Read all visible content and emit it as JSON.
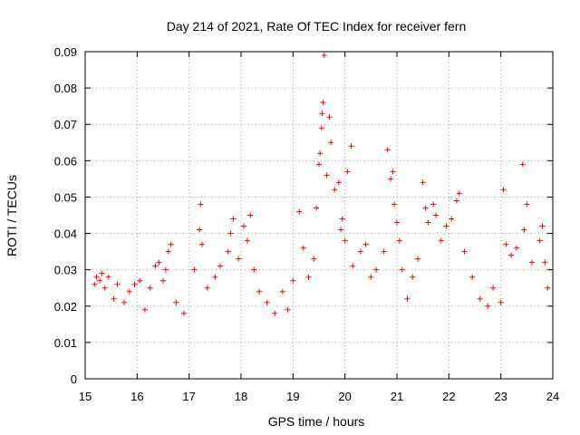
{
  "chart_data": {
    "type": "scatter",
    "title": "Day 214 of 2021, Rate Of TEC Index for receiver fern",
    "xlabel": "GPS time / hours",
    "ylabel": "ROTI / TECUs",
    "xlim": [
      15,
      24
    ],
    "ylim": [
      0,
      0.09
    ],
    "x_ticks": [
      15,
      16,
      17,
      18,
      19,
      20,
      21,
      22,
      23,
      24
    ],
    "x_tick_labels": [
      "15",
      "16",
      "17",
      "18",
      "19",
      "20",
      "21",
      "22",
      "23",
      "24"
    ],
    "y_ticks": [
      0,
      0.01,
      0.02,
      0.03,
      0.04,
      0.05,
      0.06,
      0.07,
      0.08,
      0.09
    ],
    "y_tick_labels": [
      "0",
      "0.01",
      "0.02",
      "0.03",
      "0.04",
      "0.05",
      "0.06",
      "0.07",
      "0.08",
      "0.09"
    ],
    "grid": true,
    "marker": "+",
    "series": [
      {
        "name": "ROTI",
        "color": "#ff0000",
        "points": [
          [
            15.18,
            0.026
          ],
          [
            15.22,
            0.028
          ],
          [
            15.28,
            0.027
          ],
          [
            15.32,
            0.029
          ],
          [
            15.38,
            0.025
          ],
          [
            15.45,
            0.028
          ],
          [
            15.55,
            0.022
          ],
          [
            15.62,
            0.026
          ],
          [
            15.75,
            0.021
          ],
          [
            15.85,
            0.024
          ],
          [
            15.95,
            0.026
          ],
          [
            16.05,
            0.027
          ],
          [
            16.15,
            0.019
          ],
          [
            16.25,
            0.025
          ],
          [
            16.35,
            0.031
          ],
          [
            16.42,
            0.032
          ],
          [
            16.5,
            0.027
          ],
          [
            16.55,
            0.03
          ],
          [
            16.6,
            0.035
          ],
          [
            16.65,
            0.037
          ],
          [
            16.75,
            0.021
          ],
          [
            16.9,
            0.018
          ],
          [
            17.1,
            0.03
          ],
          [
            17.2,
            0.041
          ],
          [
            17.22,
            0.048
          ],
          [
            17.25,
            0.037
          ],
          [
            17.35,
            0.025
          ],
          [
            17.5,
            0.028
          ],
          [
            17.6,
            0.031
          ],
          [
            17.75,
            0.035
          ],
          [
            17.8,
            0.04
          ],
          [
            17.85,
            0.044
          ],
          [
            17.95,
            0.033
          ],
          [
            18.05,
            0.042
          ],
          [
            18.12,
            0.038
          ],
          [
            18.18,
            0.045
          ],
          [
            18.25,
            0.03
          ],
          [
            18.35,
            0.024
          ],
          [
            18.5,
            0.021
          ],
          [
            18.65,
            0.018
          ],
          [
            18.8,
            0.024
          ],
          [
            18.9,
            0.019
          ],
          [
            19.0,
            0.027
          ],
          [
            19.12,
            0.046
          ],
          [
            19.2,
            0.036
          ],
          [
            19.3,
            0.028
          ],
          [
            19.4,
            0.033
          ],
          [
            19.45,
            0.047
          ],
          [
            19.5,
            0.059
          ],
          [
            19.52,
            0.062
          ],
          [
            19.55,
            0.069
          ],
          [
            19.56,
            0.073
          ],
          [
            19.58,
            0.076
          ],
          [
            19.6,
            0.089
          ],
          [
            19.65,
            0.056
          ],
          [
            19.7,
            0.072
          ],
          [
            19.73,
            0.065
          ],
          [
            19.8,
            0.052
          ],
          [
            19.88,
            0.054
          ],
          [
            19.92,
            0.041
          ],
          [
            19.95,
            0.044
          ],
          [
            20.0,
            0.038
          ],
          [
            20.05,
            0.057
          ],
          [
            20.12,
            0.064
          ],
          [
            20.15,
            0.031
          ],
          [
            20.3,
            0.035
          ],
          [
            20.4,
            0.037
          ],
          [
            20.5,
            0.028
          ],
          [
            20.6,
            0.03
          ],
          [
            20.75,
            0.035
          ],
          [
            20.82,
            0.063
          ],
          [
            20.88,
            0.055
          ],
          [
            20.92,
            0.057
          ],
          [
            20.95,
            0.048
          ],
          [
            21.0,
            0.043
          ],
          [
            21.05,
            0.038
          ],
          [
            21.1,
            0.03
          ],
          [
            21.2,
            0.022
          ],
          [
            21.3,
            0.028
          ],
          [
            21.4,
            0.033
          ],
          [
            21.5,
            0.054
          ],
          [
            21.55,
            0.047
          ],
          [
            21.6,
            0.043
          ],
          [
            21.7,
            0.048
          ],
          [
            21.75,
            0.045
          ],
          [
            21.85,
            0.038
          ],
          [
            21.95,
            0.042
          ],
          [
            22.05,
            0.044
          ],
          [
            22.15,
            0.049
          ],
          [
            22.2,
            0.051
          ],
          [
            22.3,
            0.035
          ],
          [
            22.45,
            0.028
          ],
          [
            22.6,
            0.022
          ],
          [
            22.75,
            0.02
          ],
          [
            22.85,
            0.025
          ],
          [
            23.0,
            0.021
          ],
          [
            23.05,
            0.052
          ],
          [
            23.1,
            0.037
          ],
          [
            23.2,
            0.034
          ],
          [
            23.3,
            0.036
          ],
          [
            23.42,
            0.059
          ],
          [
            23.45,
            0.041
          ],
          [
            23.5,
            0.048
          ],
          [
            23.6,
            0.032
          ],
          [
            23.75,
            0.038
          ],
          [
            23.8,
            0.042
          ],
          [
            23.85,
            0.032
          ],
          [
            23.9,
            0.025
          ]
        ]
      }
    ]
  }
}
